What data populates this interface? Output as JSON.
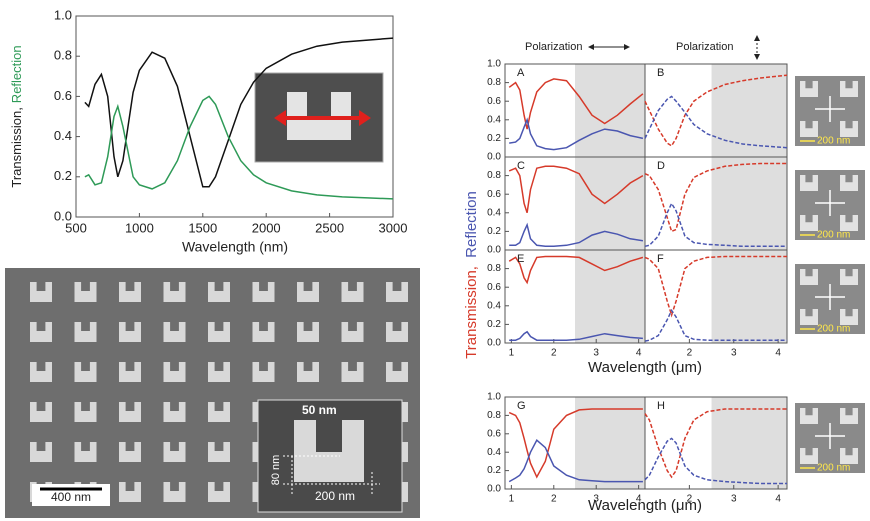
{
  "chart_data": [
    {
      "type": "line",
      "xlabel": "Wavelength (nm)",
      "ylabel_parts": [
        {
          "text": "Transmission,",
          "color": "#222222"
        },
        {
          "text": "Reflection",
          "color": "#2e9a57"
        }
      ],
      "x": [
        570,
        600,
        650,
        700,
        750,
        800,
        830,
        870,
        950,
        1000,
        1100,
        1200,
        1300,
        1400,
        1500,
        1550,
        1600,
        1700,
        1800,
        1900,
        2000,
        2200,
        2400,
        2600,
        2800,
        3000
      ],
      "series": [
        {
          "color": "#111111",
          "values": [
            0.57,
            0.55,
            0.66,
            0.71,
            0.6,
            0.3,
            0.2,
            0.28,
            0.62,
            0.73,
            0.82,
            0.79,
            0.65,
            0.4,
            0.15,
            0.15,
            0.2,
            0.38,
            0.56,
            0.67,
            0.74,
            0.81,
            0.85,
            0.87,
            0.88,
            0.89
          ]
        },
        {
          "color": "#2e9a57",
          "values": [
            0.2,
            0.21,
            0.16,
            0.17,
            0.3,
            0.5,
            0.55,
            0.45,
            0.2,
            0.16,
            0.14,
            0.17,
            0.28,
            0.45,
            0.58,
            0.6,
            0.56,
            0.4,
            0.28,
            0.21,
            0.17,
            0.13,
            0.11,
            0.1,
            0.095,
            0.09
          ]
        }
      ],
      "xlim": [
        500,
        3000
      ],
      "xticks": [
        500,
        1000,
        1500,
        2000,
        2500,
        3000
      ],
      "ylim": [
        0,
        1
      ],
      "yticks": [
        {
          "value": 0,
          "label": "0.0"
        },
        0.2,
        0.4,
        0.6,
        0.8,
        {
          "value": 1,
          "label": "1.0"
        }
      ]
    },
    {
      "type": "line",
      "panel_label": "A",
      "shade": [
        2.5,
        4.15
      ],
      "x": [
        0.95,
        1.1,
        1.2,
        1.3,
        1.37,
        1.45,
        1.6,
        1.8,
        2.0,
        2.3,
        2.6,
        2.9,
        3.2,
        3.5,
        3.8,
        4.1
      ],
      "series": [
        {
          "color": "#d63a2a",
          "values": [
            0.75,
            0.8,
            0.72,
            0.45,
            0.3,
            0.48,
            0.7,
            0.8,
            0.84,
            0.82,
            0.65,
            0.45,
            0.36,
            0.45,
            0.57,
            0.68
          ]
        },
        {
          "color": "#4a56b0",
          "values": [
            0.15,
            0.16,
            0.2,
            0.32,
            0.4,
            0.25,
            0.12,
            0.09,
            0.08,
            0.1,
            0.18,
            0.25,
            0.3,
            0.28,
            0.23,
            0.2
          ]
        }
      ],
      "xlim": [
        0.85,
        4.15
      ],
      "ylim": [
        0,
        1
      ],
      "yticks": [
        {
          "value": 0,
          "label": "0.0"
        },
        0.2,
        0.4,
        0.6,
        0.8,
        {
          "value": 1,
          "label": "1.0"
        }
      ]
    },
    {
      "type": "line",
      "panel_label": "B",
      "shade": [
        2.5,
        4.2
      ],
      "dashed": true,
      "x": [
        1.0,
        1.1,
        1.3,
        1.5,
        1.6,
        1.7,
        1.9,
        2.1,
        2.4,
        2.8,
        3.2,
        3.6,
        4.2
      ],
      "series": [
        {
          "color": "#d63a2a",
          "values": [
            0.6,
            0.5,
            0.3,
            0.15,
            0.12,
            0.2,
            0.45,
            0.6,
            0.7,
            0.78,
            0.82,
            0.85,
            0.88
          ]
        },
        {
          "color": "#4a56b0",
          "values": [
            0.2,
            0.3,
            0.5,
            0.62,
            0.65,
            0.6,
            0.48,
            0.35,
            0.25,
            0.18,
            0.14,
            0.12,
            0.1
          ]
        }
      ],
      "xlim": [
        1,
        4.2
      ],
      "ylim": [
        0,
        1
      ]
    },
    {
      "type": "line",
      "panel_label": "C",
      "shade": [
        2.5,
        4.15
      ],
      "x": [
        0.95,
        1.1,
        1.2,
        1.3,
        1.37,
        1.45,
        1.6,
        1.8,
        2.0,
        2.3,
        2.6,
        2.9,
        3.2,
        3.5,
        3.8,
        4.1
      ],
      "series": [
        {
          "color": "#d63a2a",
          "values": [
            0.85,
            0.88,
            0.8,
            0.5,
            0.4,
            0.65,
            0.88,
            0.9,
            0.9,
            0.88,
            0.82,
            0.6,
            0.5,
            0.6,
            0.72,
            0.8
          ]
        },
        {
          "color": "#4a56b0",
          "values": [
            0.05,
            0.05,
            0.08,
            0.2,
            0.27,
            0.12,
            0.05,
            0.04,
            0.04,
            0.05,
            0.08,
            0.16,
            0.2,
            0.17,
            0.12,
            0.1
          ]
        }
      ],
      "xlim": [
        0.85,
        4.15
      ],
      "ylim": [
        0,
        1
      ],
      "yticks": [
        {
          "value": 0,
          "label": "0.0"
        },
        0.2,
        0.4,
        0.6,
        0.8
      ]
    },
    {
      "type": "line",
      "panel_label": "D",
      "shade": [
        2.5,
        4.2
      ],
      "dashed": true,
      "x": [
        1.0,
        1.1,
        1.3,
        1.5,
        1.6,
        1.7,
        1.9,
        2.1,
        2.4,
        2.8,
        3.2,
        3.6,
        4.2
      ],
      "series": [
        {
          "color": "#d63a2a",
          "values": [
            0.82,
            0.8,
            0.65,
            0.35,
            0.2,
            0.22,
            0.6,
            0.78,
            0.85,
            0.9,
            0.92,
            0.93,
            0.93
          ]
        },
        {
          "color": "#4a56b0",
          "values": [
            0.04,
            0.05,
            0.15,
            0.4,
            0.5,
            0.42,
            0.15,
            0.08,
            0.06,
            0.05,
            0.04,
            0.04,
            0.04
          ]
        }
      ],
      "xlim": [
        1,
        4.2
      ],
      "ylim": [
        0,
        1
      ]
    },
    {
      "type": "line",
      "panel_label": "E",
      "shade": [
        2.5,
        4.15
      ],
      "x": [
        0.95,
        1.1,
        1.2,
        1.3,
        1.37,
        1.45,
        1.6,
        1.8,
        2.0,
        2.3,
        2.6,
        2.9,
        3.2,
        3.5,
        3.8,
        4.1
      ],
      "series": [
        {
          "color": "#d63a2a",
          "values": [
            0.88,
            0.92,
            0.85,
            0.7,
            0.65,
            0.78,
            0.92,
            0.93,
            0.93,
            0.93,
            0.92,
            0.85,
            0.78,
            0.82,
            0.88,
            0.92
          ]
        },
        {
          "color": "#4a56b0",
          "values": [
            0.03,
            0.03,
            0.05,
            0.1,
            0.12,
            0.07,
            0.03,
            0.03,
            0.03,
            0.03,
            0.04,
            0.07,
            0.1,
            0.08,
            0.06,
            0.05
          ]
        }
      ],
      "xlim": [
        0.85,
        4.15
      ],
      "ylim": [
        0,
        1
      ],
      "xticks": [
        1,
        2,
        3,
        4
      ],
      "xlabel": "Wavelength (μm)",
      "yticks": [
        {
          "value": 0,
          "label": "0.0"
        },
        0.2,
        0.4,
        0.6,
        0.8
      ]
    },
    {
      "type": "line",
      "panel_label": "F",
      "shade": [
        2.5,
        4.2
      ],
      "dashed": true,
      "x": [
        1.0,
        1.1,
        1.3,
        1.5,
        1.6,
        1.7,
        1.9,
        2.1,
        2.4,
        2.8,
        3.2,
        3.6,
        4.2
      ],
      "series": [
        {
          "color": "#d63a2a",
          "values": [
            0.92,
            0.9,
            0.8,
            0.45,
            0.3,
            0.45,
            0.8,
            0.88,
            0.92,
            0.93,
            0.93,
            0.93,
            0.93
          ]
        },
        {
          "color": "#4a56b0",
          "values": [
            0.02,
            0.03,
            0.08,
            0.25,
            0.35,
            0.28,
            0.08,
            0.04,
            0.03,
            0.03,
            0.03,
            0.03,
            0.03
          ]
        }
      ],
      "xlim": [
        1,
        4.2
      ],
      "ylim": [
        0,
        1
      ],
      "xticks": [
        2,
        3,
        4
      ]
    },
    {
      "type": "line",
      "panel_label": "G",
      "shade": [
        2.5,
        4.15
      ],
      "x": [
        0.95,
        1.1,
        1.2,
        1.3,
        1.37,
        1.45,
        1.6,
        1.8,
        2.0,
        2.3,
        2.6,
        2.9,
        3.2,
        3.5,
        3.8,
        4.1
      ],
      "series": [
        {
          "color": "#d63a2a",
          "values": [
            0.83,
            0.8,
            0.72,
            0.55,
            0.42,
            0.28,
            0.13,
            0.3,
            0.65,
            0.8,
            0.86,
            0.87,
            0.87,
            0.87,
            0.87,
            0.87
          ]
        },
        {
          "color": "#4a56b0",
          "values": [
            0.08,
            0.12,
            0.15,
            0.22,
            0.3,
            0.4,
            0.53,
            0.45,
            0.25,
            0.15,
            0.1,
            0.09,
            0.08,
            0.08,
            0.08,
            0.08
          ]
        }
      ],
      "xlim": [
        0.85,
        4.15
      ],
      "ylim": [
        0,
        1
      ],
      "xticks": [
        1,
        2,
        3,
        4
      ],
      "xlabel": "Wavelength (μm)",
      "yticks": [
        {
          "value": 0,
          "label": "0.0"
        },
        0.2,
        0.4,
        0.6,
        0.8,
        {
          "value": 1,
          "label": "1.0"
        }
      ]
    },
    {
      "type": "line",
      "panel_label": "H",
      "shade": [
        2.5,
        4.2
      ],
      "dashed": true,
      "x": [
        1.0,
        1.1,
        1.3,
        1.5,
        1.6,
        1.7,
        1.9,
        2.1,
        2.4,
        2.8,
        3.2,
        3.6,
        4.2
      ],
      "series": [
        {
          "color": "#d63a2a",
          "values": [
            0.82,
            0.75,
            0.45,
            0.2,
            0.13,
            0.2,
            0.55,
            0.75,
            0.84,
            0.87,
            0.87,
            0.87,
            0.87
          ]
        },
        {
          "color": "#4a56b0",
          "values": [
            0.1,
            0.15,
            0.35,
            0.52,
            0.55,
            0.5,
            0.25,
            0.15,
            0.1,
            0.08,
            0.07,
            0.06,
            0.06
          ]
        }
      ],
      "xlim": [
        1,
        4.2
      ],
      "ylim": [
        0,
        1
      ],
      "xticks": [
        2,
        3,
        4
      ]
    }
  ],
  "figure": {
    "ylabel_parts": [
      {
        "text": "Transmission,",
        "color": "#d63a2a"
      },
      {
        "text": "Reflection",
        "color": "#4a56b0"
      }
    ],
    "polarization": [
      "Polarization",
      "Polarization"
    ]
  },
  "images": {
    "scale_main": "400 nm",
    "inset_top": "50 nm",
    "inset_side": "80 nm",
    "inset_bottom": "200 nm",
    "panel_scales": [
      "200 nm",
      "200 nm",
      "200 nm",
      "200 nm"
    ]
  }
}
